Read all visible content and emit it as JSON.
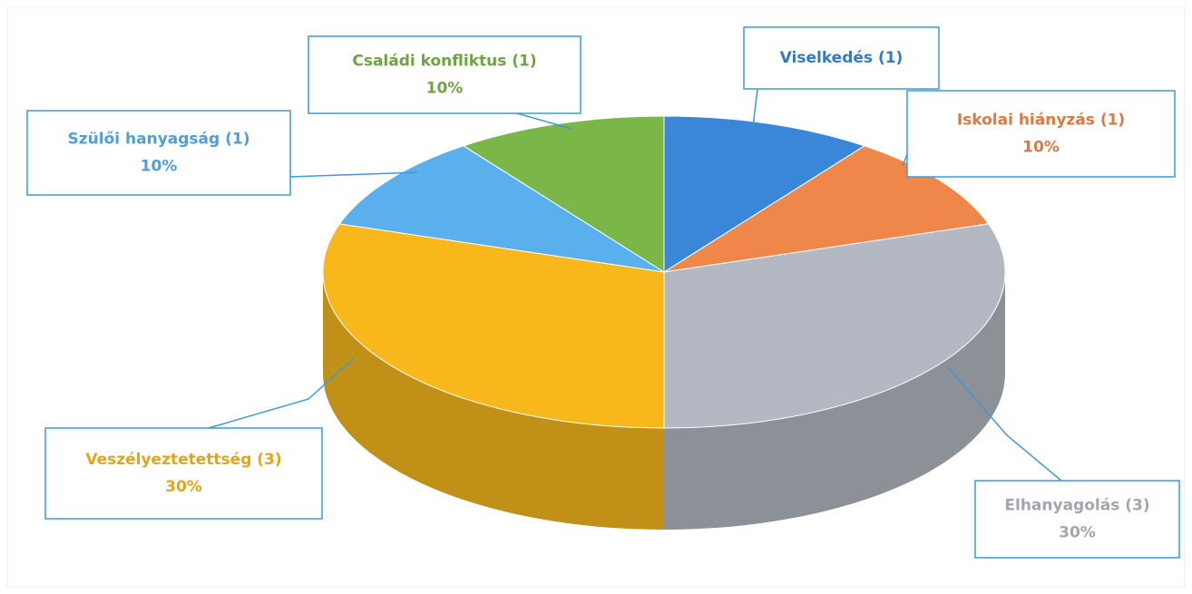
{
  "chart_data": {
    "type": "pie",
    "categories": [
      "Viselkedés (1)",
      "Iskolai hiányzás (1)",
      "Elhanyagolás (3)",
      "Veszélyeztetettség (3)",
      "Szülői hanyagság (1)",
      "Családi konfliktus (1)"
    ],
    "values": [
      10,
      10,
      30,
      30,
      10,
      10
    ],
    "value_labels": [
      null,
      "10%",
      "30%",
      "30%",
      "10%",
      "10%"
    ],
    "colors": [
      "#3a86d8",
      "#f0874a",
      "#b4b8c2",
      "#f8b81c",
      "#5ab0ec",
      "#7ab648"
    ]
  }
}
